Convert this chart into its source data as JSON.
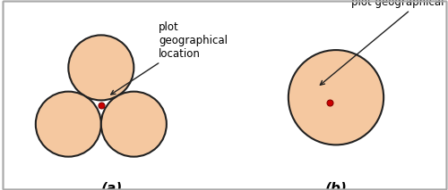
{
  "circle_color": "#F5C8A0",
  "circle_edge_color": "#222222",
  "circle_linewidth": 1.5,
  "dot_color": "#CC0000",
  "dot_edge_color": "#880000",
  "annotation_text_a": "plot\ngeographical\nlocation",
  "annotation_text_b": "plot geographical location",
  "label_a": "(a)",
  "label_b": "(b)",
  "label_fontsize": 11,
  "annotation_fontsize": 8.5,
  "bg_color": "#ffffff",
  "arrow_color": "#222222",
  "fig_border_color": "#aaaaaa",
  "panel_a_r": 0.3,
  "panel_b_r": 0.38,
  "panel_a_xlim": [
    -0.75,
    0.85
  ],
  "panel_a_ylim": [
    -0.72,
    0.82
  ],
  "panel_b_xlim": [
    -0.72,
    0.72
  ],
  "panel_b_ylim": [
    -0.62,
    0.72
  ]
}
